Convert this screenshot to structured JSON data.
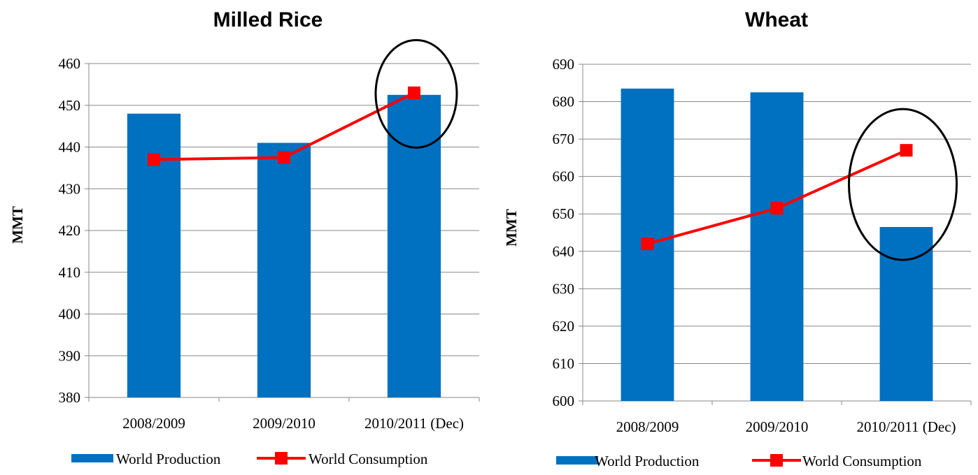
{
  "colors": {
    "production": "#0070C0",
    "consumption": "#FF0000",
    "grid": "#888888",
    "highlight_ellipse": "#000000"
  },
  "chart_data": [
    {
      "type": "bar",
      "title": "Milled Rice",
      "ylabel": "MMT",
      "xlabel": "",
      "ylim": [
        380,
        460
      ],
      "ytick_step": 10,
      "grid": true,
      "legend_position": "bottom",
      "categories": [
        "2008/2009",
        "2009/2010",
        "2010/2011 (Dec)"
      ],
      "series": [
        {
          "name": "World Production",
          "type": "bar",
          "values": [
            448,
            441,
            452.5
          ]
        },
        {
          "name": "World Consumption",
          "type": "line",
          "marker": "square",
          "values": [
            437,
            437.5,
            453
          ]
        }
      ],
      "highlight_category": "2010/2011 (Dec)"
    },
    {
      "type": "bar",
      "title": "Wheat",
      "ylabel": "MMT",
      "xlabel": "",
      "ylim": [
        600,
        690
      ],
      "ytick_step": 10,
      "grid": true,
      "legend_position": "bottom",
      "categories": [
        "2008/2009",
        "2009/2010",
        "2010/2011 (Dec)"
      ],
      "series": [
        {
          "name": "World Production",
          "type": "bar",
          "values": [
            683.5,
            682.5,
            646.5
          ]
        },
        {
          "name": "World Consumption",
          "type": "line",
          "marker": "square",
          "values": [
            642,
            651.5,
            667
          ]
        }
      ],
      "highlight_category": "2010/2011 (Dec)"
    }
  ]
}
